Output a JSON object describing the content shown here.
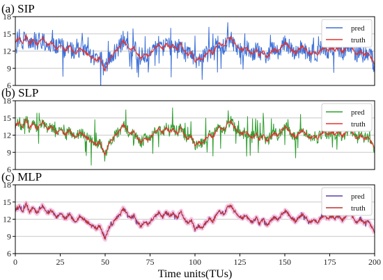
{
  "chart_data": [
    {
      "type": "line",
      "title": "(a)  SIP",
      "xlim": [
        0,
        200
      ],
      "ylim": [
        6,
        18
      ],
      "yticks": [
        6,
        9,
        12,
        15,
        18
      ],
      "xticks": [],
      "grid": true,
      "legend_position": "top-right",
      "series": [
        {
          "name": "pred",
          "color": "#3b6fd8",
          "noise": 1.6,
          "spike": 3.5
        },
        {
          "name": "truth",
          "color": "#e3342f"
        }
      ]
    },
    {
      "type": "line",
      "title": "(b)  SLP",
      "xlim": [
        0,
        200
      ],
      "ylim": [
        6,
        18
      ],
      "yticks": [
        6,
        9,
        12,
        15,
        18
      ],
      "xticks": [],
      "grid": true,
      "legend_position": "top-right",
      "series": [
        {
          "name": "pred",
          "color": "#2f9e2f",
          "noise": 0.9,
          "spike": 2.6
        },
        {
          "name": "truth",
          "color": "#e3342f"
        }
      ]
    },
    {
      "type": "line",
      "title": "(c)  MLP",
      "xlim": [
        0,
        200
      ],
      "ylim": [
        6,
        18
      ],
      "yticks": [
        6,
        9,
        12,
        15,
        18
      ],
      "xticks": [
        0,
        25,
        50,
        75,
        100,
        125,
        150,
        175,
        200
      ],
      "xlabel": "Time units(TUs)",
      "grid": true,
      "legend_position": "top-right",
      "series": [
        {
          "name": "pred",
          "color": "#5a3fa8",
          "noise": 0.15,
          "spike": 0.4
        },
        {
          "name": "truth",
          "color": "#c0312f"
        }
      ]
    }
  ],
  "truth_series": [
    [
      0,
      13.4
    ],
    [
      2,
      14.3
    ],
    [
      4,
      13.2
    ],
    [
      6,
      14.7
    ],
    [
      8,
      13.3
    ],
    [
      10,
      14.1
    ],
    [
      12,
      13.0
    ],
    [
      15,
      14.4
    ],
    [
      18,
      12.9
    ],
    [
      20,
      13.6
    ],
    [
      23,
      12.3
    ],
    [
      25,
      13.1
    ],
    [
      28,
      12.0
    ],
    [
      30,
      12.9
    ],
    [
      33,
      11.5
    ],
    [
      36,
      12.5
    ],
    [
      39,
      11.8
    ],
    [
      42,
      11.0
    ],
    [
      45,
      10.4
    ],
    [
      47,
      10.8
    ],
    [
      49,
      9.3
    ],
    [
      50,
      8.6
    ],
    [
      52,
      10.5
    ],
    [
      54,
      11.2
    ],
    [
      56,
      12.1
    ],
    [
      58,
      12.7
    ],
    [
      60,
      13.8
    ],
    [
      62,
      13.0
    ],
    [
      64,
      12.2
    ],
    [
      66,
      12.6
    ],
    [
      68,
      11.5
    ],
    [
      70,
      10.7
    ],
    [
      72,
      11.6
    ],
    [
      74,
      11.1
    ],
    [
      76,
      11.9
    ],
    [
      78,
      12.5
    ],
    [
      80,
      13.2
    ],
    [
      82,
      12.4
    ],
    [
      84,
      13.3
    ],
    [
      86,
      12.6
    ],
    [
      88,
      13.1
    ],
    [
      90,
      12.2
    ],
    [
      92,
      13.4
    ],
    [
      94,
      12.0
    ],
    [
      96,
      11.3
    ],
    [
      98,
      11.9
    ],
    [
      100,
      10.2
    ],
    [
      102,
      10.8
    ],
    [
      104,
      10.5
    ],
    [
      106,
      11.5
    ],
    [
      108,
      12.1
    ],
    [
      110,
      11.6
    ],
    [
      112,
      12.8
    ],
    [
      114,
      13.4
    ],
    [
      116,
      12.7
    ],
    [
      118,
      14.0
    ],
    [
      120,
      14.4
    ],
    [
      122,
      13.3
    ],
    [
      124,
      12.7
    ],
    [
      126,
      12.2
    ],
    [
      128,
      12.6
    ],
    [
      130,
      12.0
    ],
    [
      132,
      11.5
    ],
    [
      134,
      12.3
    ],
    [
      136,
      11.2
    ],
    [
      138,
      12.1
    ],
    [
      140,
      10.9
    ],
    [
      142,
      11.7
    ],
    [
      144,
      12.4
    ],
    [
      146,
      11.8
    ],
    [
      148,
      12.8
    ],
    [
      150,
      13.5
    ],
    [
      152,
      12.9
    ],
    [
      154,
      12.1
    ],
    [
      156,
      11.6
    ],
    [
      158,
      12.4
    ],
    [
      160,
      12.9
    ],
    [
      162,
      12.2
    ],
    [
      164,
      11.4
    ],
    [
      166,
      12.1
    ],
    [
      168,
      11.3
    ],
    [
      170,
      12.2
    ],
    [
      172,
      12.7
    ],
    [
      174,
      12.0
    ],
    [
      176,
      12.6
    ],
    [
      178,
      12.1
    ],
    [
      180,
      12.8
    ],
    [
      182,
      11.8
    ],
    [
      184,
      12.5
    ],
    [
      186,
      13.0
    ],
    [
      188,
      12.3
    ],
    [
      190,
      11.4
    ],
    [
      192,
      12.0
    ],
    [
      194,
      11.3
    ],
    [
      196,
      11.6
    ],
    [
      198,
      10.8
    ],
    [
      200,
      9.6
    ]
  ]
}
